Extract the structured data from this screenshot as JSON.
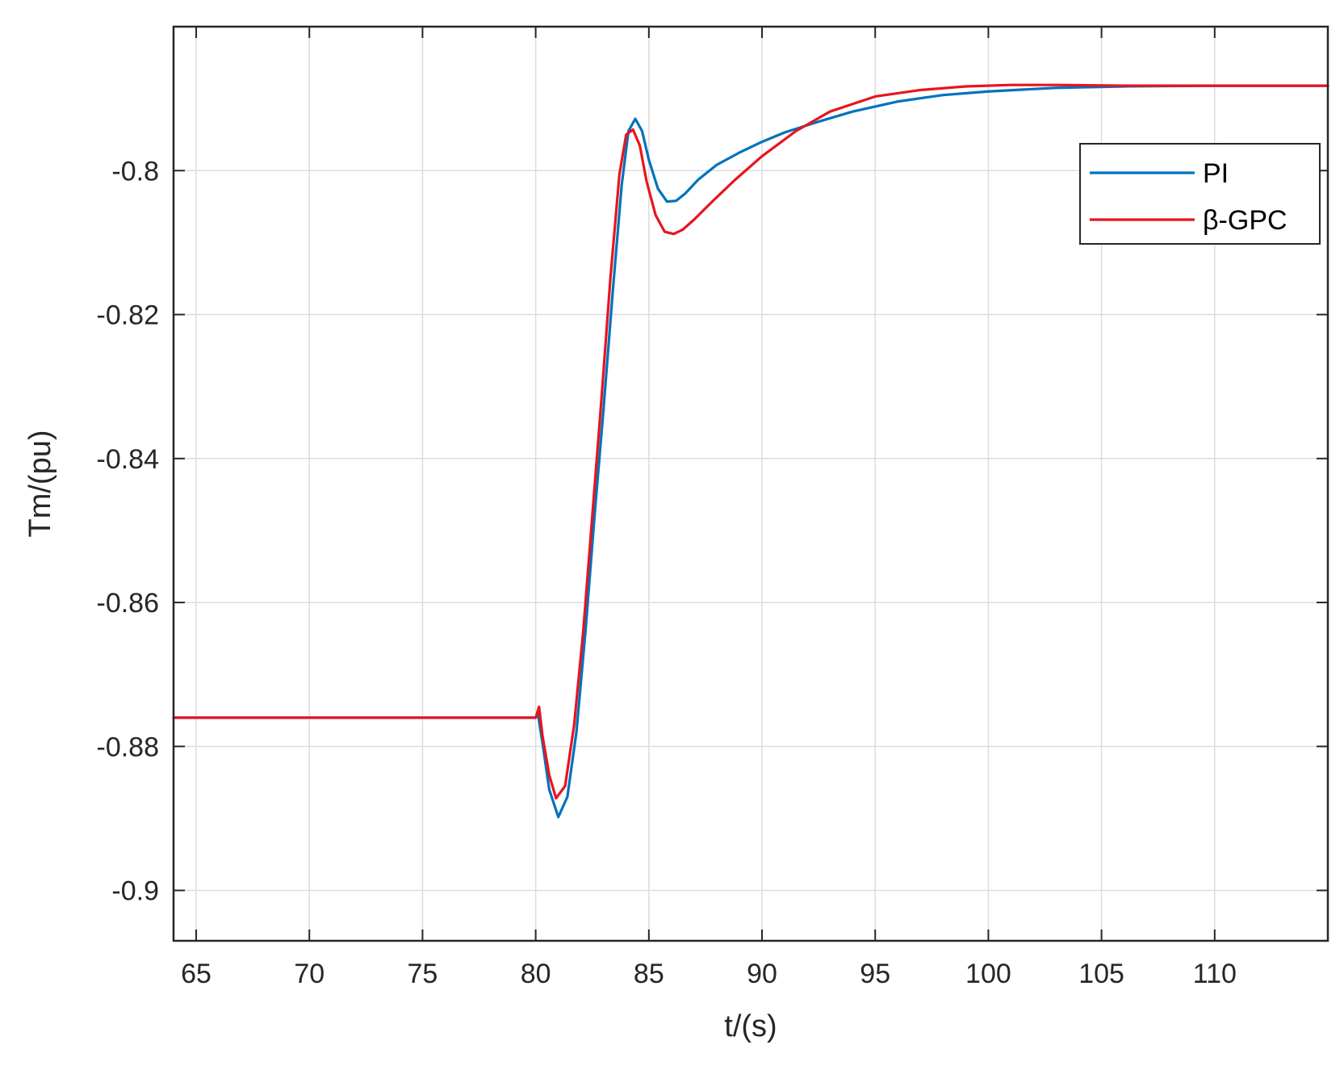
{
  "chart_data": {
    "type": "line",
    "title": "",
    "xlabel": "t/(s)",
    "ylabel": "Tm/(pu)",
    "xlim": [
      64,
      115
    ],
    "ylim": [
      -0.907,
      -0.78
    ],
    "xticks": [
      65,
      70,
      75,
      80,
      85,
      90,
      95,
      100,
      105,
      110
    ],
    "xtick_labels": [
      "65",
      "70",
      "75",
      "80",
      "85",
      "90",
      "95",
      "100",
      "105",
      "110"
    ],
    "yticks": [
      -0.8,
      -0.82,
      -0.84,
      -0.86,
      -0.88,
      -0.9
    ],
    "ytick_labels": [
      "-0.8",
      "-0.82",
      "-0.84",
      "-0.86",
      "-0.88",
      "-0.9"
    ],
    "grid": true,
    "legend": {
      "position": "top-right"
    },
    "series": [
      {
        "name": "PI",
        "color": "#0072BD",
        "x": [
          64,
          80,
          80.1,
          80.3,
          80.6,
          81.0,
          81.4,
          81.8,
          82.2,
          82.6,
          83.0,
          83.4,
          83.8,
          84.1,
          84.4,
          84.7,
          85.0,
          85.4,
          85.8,
          86.2,
          86.6,
          87.2,
          88.0,
          89.0,
          90.0,
          91.0,
          92.5,
          94.0,
          96.0,
          98.0,
          100.0,
          103.0,
          106.0,
          110.0,
          115.0
        ],
        "y": [
          -0.876,
          -0.876,
          -0.8755,
          -0.8795,
          -0.886,
          -0.8898,
          -0.887,
          -0.878,
          -0.864,
          -0.848,
          -0.833,
          -0.817,
          -0.802,
          -0.7945,
          -0.7928,
          -0.7945,
          -0.7985,
          -0.8025,
          -0.8043,
          -0.8042,
          -0.8032,
          -0.8012,
          -0.7992,
          -0.7975,
          -0.796,
          -0.7947,
          -0.7932,
          -0.7918,
          -0.7904,
          -0.7895,
          -0.789,
          -0.7885,
          -0.7883,
          -0.7882,
          -0.7882
        ]
      },
      {
        "name": "β-GPC",
        "color": "#E8141E",
        "x": [
          64,
          80,
          80.05,
          80.15,
          80.3,
          80.6,
          80.9,
          81.3,
          81.7,
          82.1,
          82.5,
          82.9,
          83.3,
          83.7,
          84.0,
          84.3,
          84.6,
          84.9,
          85.3,
          85.7,
          86.1,
          86.5,
          87.0,
          87.8,
          88.8,
          90.0,
          91.5,
          93.0,
          95.0,
          97.0,
          99.0,
          101.0,
          103.0,
          106.0,
          110.0,
          115.0
        ],
        "y": [
          -0.876,
          -0.876,
          -0.8755,
          -0.8745,
          -0.8785,
          -0.884,
          -0.8872,
          -0.8855,
          -0.877,
          -0.864,
          -0.848,
          -0.832,
          -0.815,
          -0.8005,
          -0.795,
          -0.7943,
          -0.7965,
          -0.8015,
          -0.8062,
          -0.8085,
          -0.8088,
          -0.8082,
          -0.8068,
          -0.8043,
          -0.8013,
          -0.798,
          -0.7945,
          -0.7918,
          -0.7897,
          -0.7888,
          -0.7883,
          -0.7881,
          -0.7881,
          -0.7882,
          -0.7882,
          -0.7882
        ]
      }
    ]
  }
}
